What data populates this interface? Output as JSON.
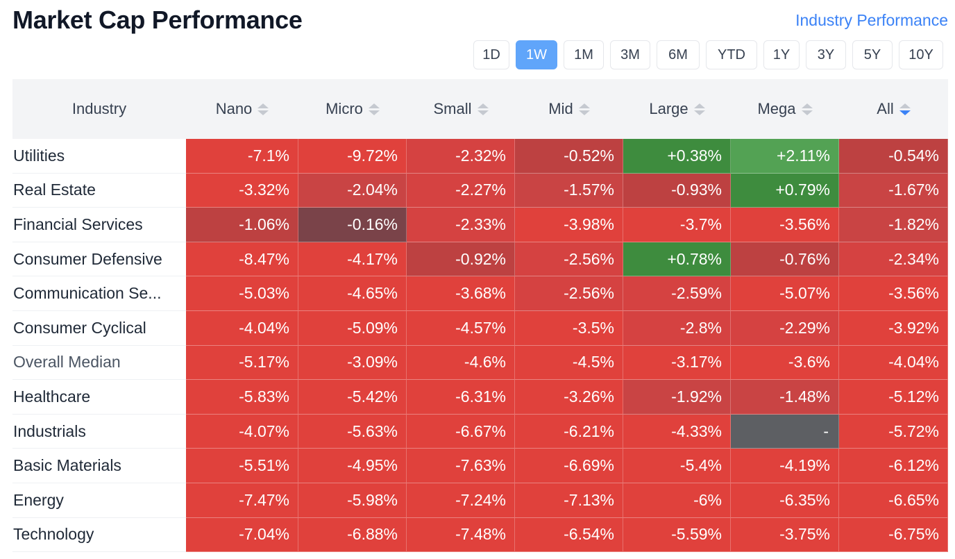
{
  "header": {
    "title": "Market Cap Performance",
    "link": "Industry Performance"
  },
  "periods": [
    {
      "label": "1D",
      "active": false
    },
    {
      "label": "1W",
      "active": true
    },
    {
      "label": "1M",
      "active": false
    },
    {
      "label": "3M",
      "active": false
    },
    {
      "label": "6M",
      "active": false
    },
    {
      "label": "YTD",
      "active": false
    },
    {
      "label": "1Y",
      "active": false
    },
    {
      "label": "3Y",
      "active": false
    },
    {
      "label": "5Y",
      "active": false
    },
    {
      "label": "10Y",
      "active": false
    }
  ],
  "table": {
    "columns": [
      "Industry",
      "Nano",
      "Micro",
      "Small",
      "Mid",
      "Large",
      "Mega",
      "All"
    ],
    "sorted_column": "All",
    "sort_direction": "desc",
    "rows": [
      {
        "industry": "Utilities",
        "values": [
          "-7.1%",
          "-9.72%",
          "-2.32%",
          "-0.52%",
          "+0.38%",
          "+2.11%",
          "-0.54%"
        ]
      },
      {
        "industry": "Real Estate",
        "values": [
          "-3.32%",
          "-2.04%",
          "-2.27%",
          "-1.57%",
          "-0.93%",
          "+0.79%",
          "-1.67%"
        ]
      },
      {
        "industry": "Financial Services",
        "values": [
          "-1.06%",
          "-0.16%",
          "-2.33%",
          "-3.98%",
          "-3.7%",
          "-3.56%",
          "-1.82%"
        ]
      },
      {
        "industry": "Consumer Defensive",
        "values": [
          "-8.47%",
          "-4.17%",
          "-0.92%",
          "-2.56%",
          "+0.78%",
          "-0.76%",
          "-2.34%"
        ]
      },
      {
        "industry": "Communication Se...",
        "values": [
          "-5.03%",
          "-4.65%",
          "-3.68%",
          "-2.56%",
          "-2.59%",
          "-5.07%",
          "-3.56%"
        ]
      },
      {
        "industry": "Consumer Cyclical",
        "values": [
          "-4.04%",
          "-5.09%",
          "-4.57%",
          "-3.5%",
          "-2.8%",
          "-2.29%",
          "-3.92%"
        ]
      },
      {
        "industry": "Overall Median",
        "values": [
          "-5.17%",
          "-3.09%",
          "-4.6%",
          "-4.5%",
          "-3.17%",
          "-3.6%",
          "-4.04%"
        ]
      },
      {
        "industry": "Healthcare",
        "values": [
          "-5.83%",
          "-5.42%",
          "-6.31%",
          "-3.26%",
          "-1.92%",
          "-1.48%",
          "-5.12%"
        ]
      },
      {
        "industry": "Industrials",
        "values": [
          "-4.07%",
          "-5.63%",
          "-6.67%",
          "-6.21%",
          "-4.33%",
          "-",
          "-5.72%"
        ]
      },
      {
        "industry": "Basic Materials",
        "values": [
          "-5.51%",
          "-4.95%",
          "-7.63%",
          "-6.69%",
          "-5.4%",
          "-4.19%",
          "-6.12%"
        ]
      },
      {
        "industry": "Energy",
        "values": [
          "-7.47%",
          "-5.98%",
          "-7.24%",
          "-7.13%",
          "-6%",
          "-6.35%",
          "-6.65%"
        ]
      },
      {
        "industry": "Technology",
        "values": [
          "-7.04%",
          "-6.88%",
          "-7.48%",
          "-6.54%",
          "-5.59%",
          "-3.75%",
          "-6.75%"
        ]
      }
    ]
  },
  "colors": {
    "accent": "#3b82f6",
    "active_period": "#60a5fa",
    "strong_red": "#e0413c",
    "muted_red": "#bd4141",
    "near_zero": "#7a4349",
    "green_light": "#53a254",
    "green_dark": "#3e8c3e",
    "na": "#5d5f63"
  }
}
